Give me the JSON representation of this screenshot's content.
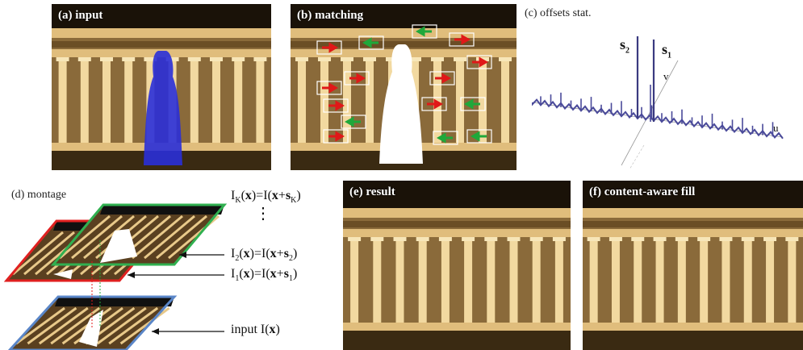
{
  "panels": {
    "a": {
      "label": "(a) input"
    },
    "b": {
      "label": "(b) matching"
    },
    "c": {
      "label": "(c) offsets stat.",
      "s2": "s",
      "s2_sub": "2",
      "s1": "s",
      "s1_sub": "1",
      "axis_v": "v",
      "axis_u": "u"
    },
    "d": {
      "label": "(d) montage"
    },
    "e": {
      "label": "(e) result"
    },
    "f": {
      "label": "(f) content-aware fill"
    }
  },
  "equations": {
    "ik": {
      "lhs": "I",
      "lhs_sub": "K",
      "mid": "(x)=I(x+s",
      "rhs_sub": "K",
      "end": ")"
    },
    "dots": "⋮",
    "i2": {
      "lhs": "I",
      "lhs_sub": "2",
      "mid": "(x)=I(x+s",
      "rhs_sub": "2",
      "end": ")"
    },
    "i1": {
      "lhs": "I",
      "lhs_sub": "1",
      "mid": "(x)=I(x+s",
      "rhs_sub": "1",
      "end": ")"
    },
    "input": {
      "text": "input I(",
      "x": "x",
      "end": ")"
    }
  },
  "colors": {
    "sky": "#1a1208",
    "stone": "#8a6a3a",
    "stone_light": "#e0bd7c",
    "column": "#f2d9a0",
    "mask_blue": "#2a2fd8",
    "arrow_red": "#e01818",
    "arrow_green": "#1fa83a",
    "layer_red": "#e02020",
    "layer_green": "#30b050",
    "layer_blue": "#5a86c8",
    "spike": "#4a4a9a"
  }
}
